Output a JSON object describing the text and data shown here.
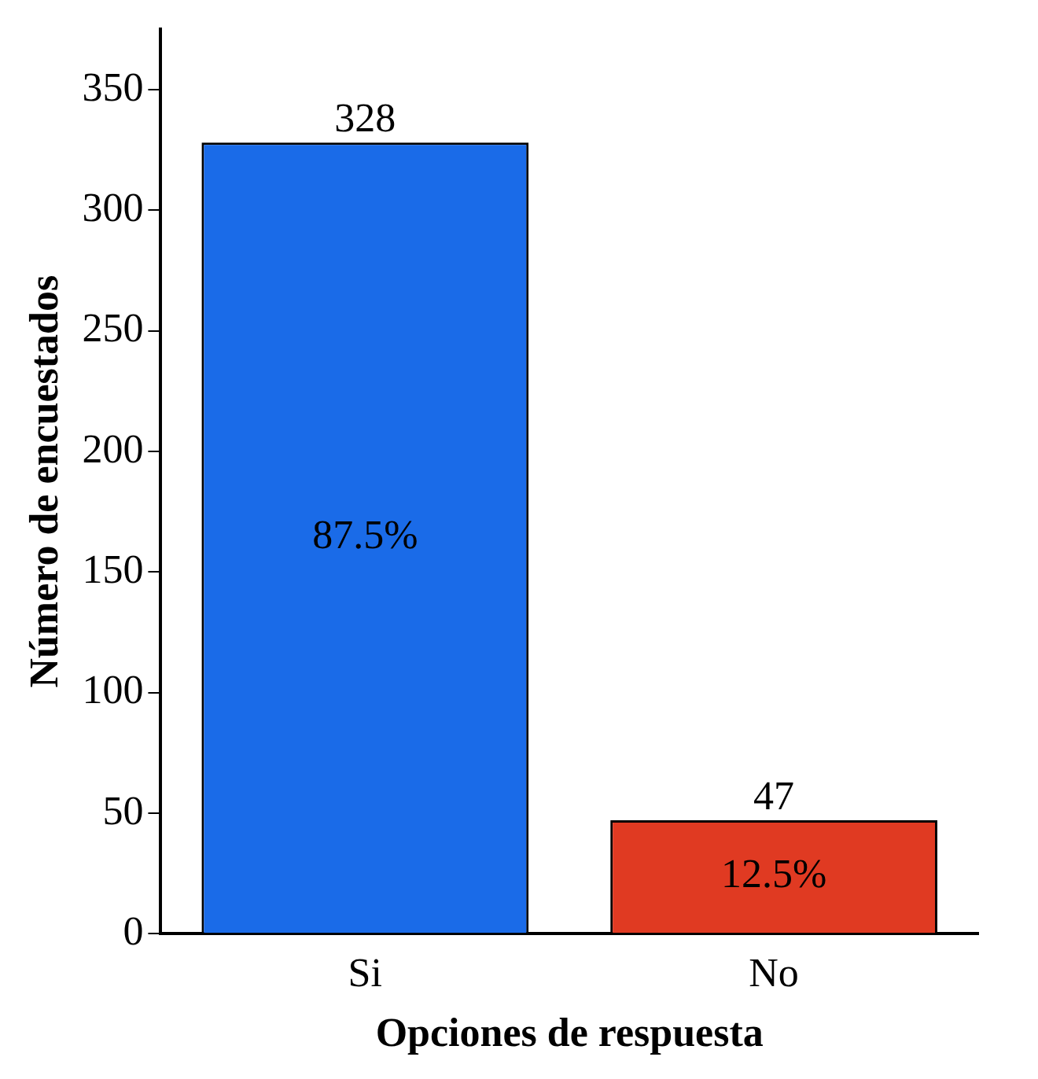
{
  "chart_data": {
    "type": "bar",
    "xlabel": "Opciones de respuesta",
    "ylabel": "Número de encuestados",
    "categories": [
      "Si",
      "No"
    ],
    "values": [
      328,
      47
    ],
    "colors": [
      "#1a6be8",
      "#e03a22"
    ],
    "ylim": [
      0,
      375
    ],
    "yticks": [
      0,
      50,
      100,
      150,
      200,
      250,
      300,
      350
    ],
    "grid": false,
    "legend": false,
    "data_labels": true,
    "annotations": [
      "87.5%",
      "12.5%"
    ]
  }
}
